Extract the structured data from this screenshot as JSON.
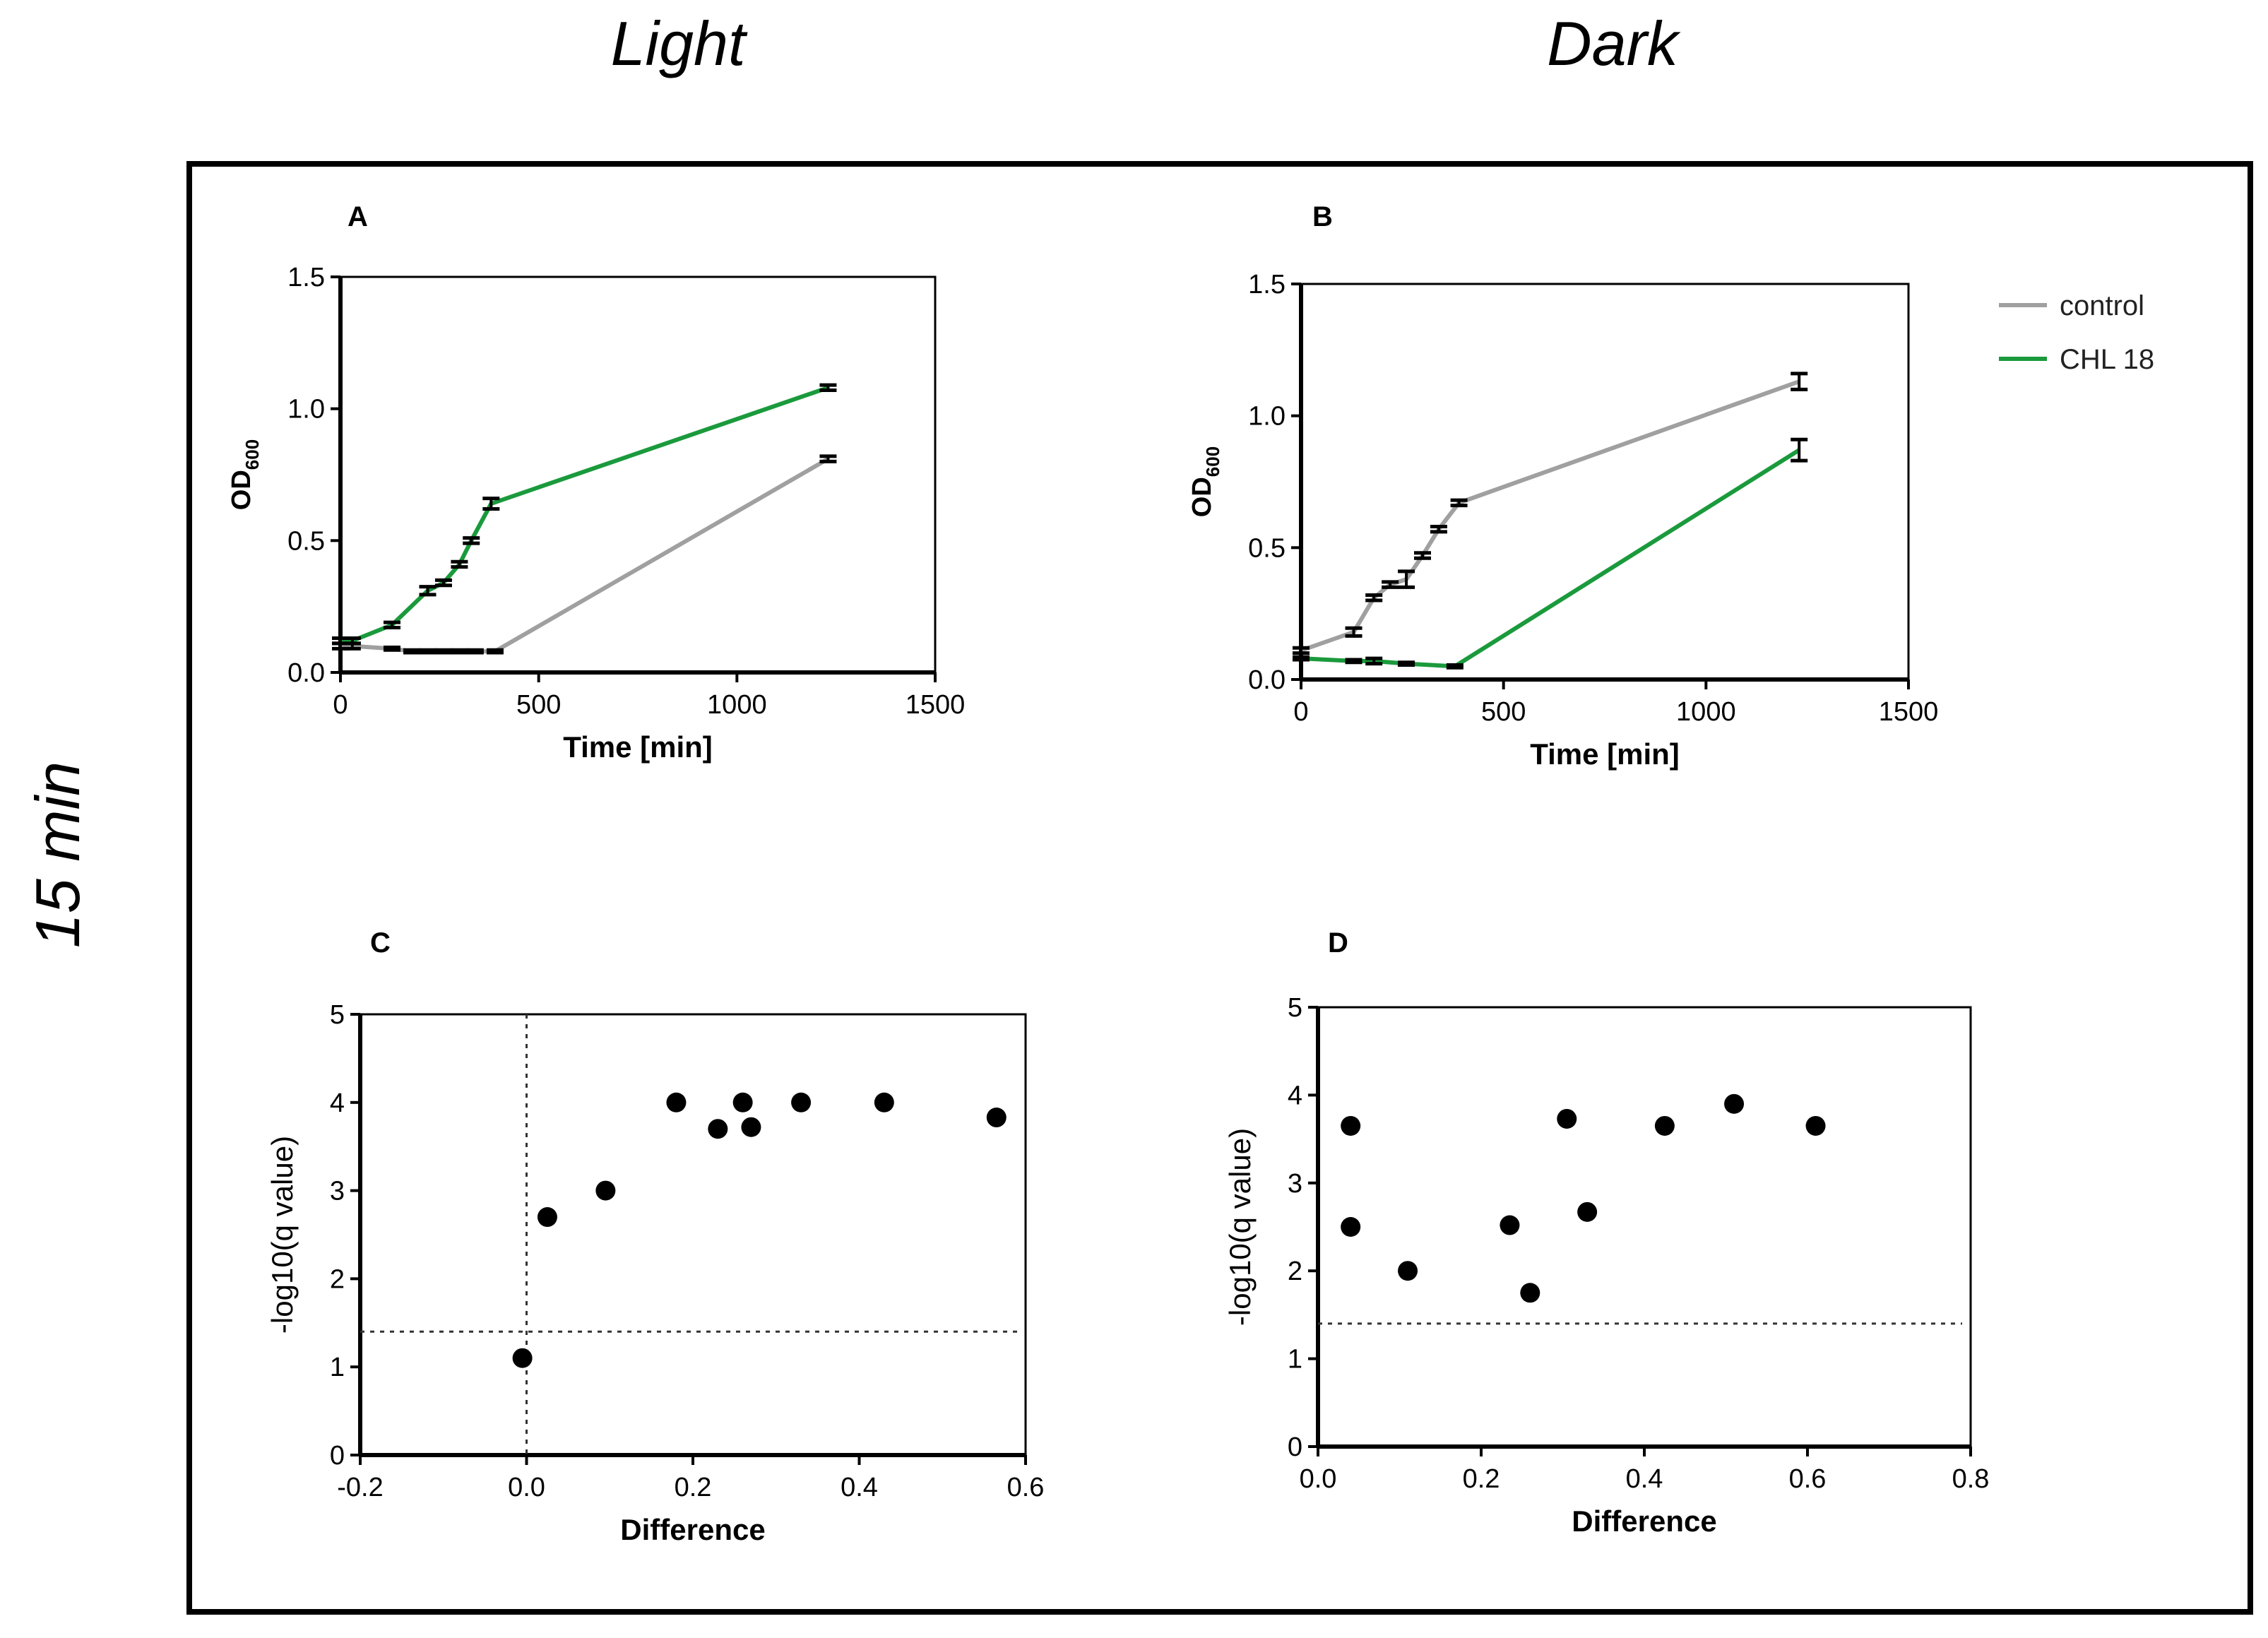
{
  "headers": {
    "col_light": "Light",
    "col_dark": "Dark",
    "row_label": "15 min"
  },
  "legend": {
    "items": [
      {
        "label": "control",
        "color": "#a0a0a0"
      },
      {
        "label": "CHL 18",
        "color": "#1a9a3c"
      }
    ]
  },
  "chart_data": [
    {
      "id": "A",
      "panel_label": "A",
      "type": "line",
      "xlabel": "Time [min]",
      "ylabel_main": "OD",
      "ylabel_sub": "600",
      "xlim": [
        0,
        1500
      ],
      "ylim": [
        0,
        1.5
      ],
      "xticks": [
        0,
        500,
        1000,
        1500
      ],
      "yticks": [
        0.0,
        0.5,
        1.0,
        1.5
      ],
      "x_tick_labels": [
        "0",
        "500",
        "1000",
        "1500"
      ],
      "y_tick_labels": [
        "0.0",
        "0.5",
        "1.0",
        "1.5"
      ],
      "series": [
        {
          "name": "control",
          "color": "#a0a0a0",
          "x": [
            0,
            30,
            130,
            180,
            220,
            260,
            300,
            340,
            390,
            1230
          ],
          "y": [
            0.1,
            0.1,
            0.09,
            0.08,
            0.08,
            0.08,
            0.08,
            0.08,
            0.08,
            0.81
          ],
          "err": [
            0.01,
            0.01,
            0.005,
            0.005,
            0.005,
            0.005,
            0.005,
            0.005,
            0.005,
            0.01
          ]
        },
        {
          "name": "CHL 18",
          "color": "#1a9a3c",
          "x": [
            0,
            30,
            130,
            220,
            260,
            300,
            330,
            380,
            1230
          ],
          "y": [
            0.12,
            0.12,
            0.18,
            0.31,
            0.34,
            0.41,
            0.5,
            0.64,
            1.08
          ],
          "err": [
            0.01,
            0.01,
            0.01,
            0.015,
            0.01,
            0.01,
            0.01,
            0.02,
            0.01
          ]
        }
      ]
    },
    {
      "id": "B",
      "panel_label": "B",
      "type": "line",
      "xlabel": "Time [min]",
      "ylabel_main": "OD",
      "ylabel_sub": "600",
      "xlim": [
        0,
        1500
      ],
      "ylim": [
        0,
        1.5
      ],
      "xticks": [
        0,
        500,
        1000,
        1500
      ],
      "yticks": [
        0.0,
        0.5,
        1.0,
        1.5
      ],
      "x_tick_labels": [
        "0",
        "500",
        "1000",
        "1500"
      ],
      "y_tick_labels": [
        "0.0",
        "0.5",
        "1.0",
        "1.5"
      ],
      "series": [
        {
          "name": "control",
          "color": "#a0a0a0",
          "x": [
            0,
            130,
            180,
            220,
            260,
            300,
            340,
            390,
            1230
          ],
          "y": [
            0.11,
            0.18,
            0.31,
            0.36,
            0.38,
            0.47,
            0.57,
            0.67,
            1.13
          ],
          "err": [
            0.01,
            0.015,
            0.01,
            0.01,
            0.03,
            0.01,
            0.01,
            0.01,
            0.03
          ]
        },
        {
          "name": "CHL 18",
          "color": "#1a9a3c",
          "x": [
            0,
            130,
            180,
            260,
            380,
            1230
          ],
          "y": [
            0.08,
            0.07,
            0.07,
            0.06,
            0.05,
            0.87
          ],
          "err": [
            0.005,
            0.005,
            0.01,
            0.005,
            0.005,
            0.04
          ]
        }
      ]
    },
    {
      "id": "C",
      "panel_label": "C",
      "type": "scatter",
      "xlabel": "Difference",
      "ylabel": "-log10(q value)",
      "xlim": [
        -0.2,
        0.6
      ],
      "ylim": [
        0,
        5
      ],
      "xticks": [
        -0.2,
        0.0,
        0.2,
        0.4,
        0.6
      ],
      "yticks": [
        0,
        1,
        2,
        3,
        4,
        5
      ],
      "x_tick_labels": [
        "-0.2",
        "0.0",
        "0.2",
        "0.4",
        "0.6"
      ],
      "y_tick_labels": [
        "0",
        "1",
        "2",
        "3",
        "4",
        "5"
      ],
      "threshold_y": 1.4,
      "vline_x": 0,
      "points": [
        {
          "x": -0.005,
          "y": 1.1
        },
        {
          "x": 0.025,
          "y": 2.7
        },
        {
          "x": 0.095,
          "y": 3.0
        },
        {
          "x": 0.18,
          "y": 4.0
        },
        {
          "x": 0.23,
          "y": 3.7
        },
        {
          "x": 0.26,
          "y": 4.0
        },
        {
          "x": 0.27,
          "y": 3.72
        },
        {
          "x": 0.33,
          "y": 4.0
        },
        {
          "x": 0.43,
          "y": 4.0
        },
        {
          "x": 0.565,
          "y": 3.83
        }
      ]
    },
    {
      "id": "D",
      "panel_label": "D",
      "type": "scatter",
      "xlabel": "Difference",
      "ylabel": "-log10(q value)",
      "xlim": [
        0,
        0.8
      ],
      "ylim": [
        0,
        5
      ],
      "xticks": [
        0.0,
        0.2,
        0.4,
        0.6,
        0.8
      ],
      "yticks": [
        0,
        1,
        2,
        3,
        4,
        5
      ],
      "x_tick_labels": [
        "0.0",
        "0.2",
        "0.4",
        "0.6",
        "0.8"
      ],
      "y_tick_labels": [
        "0",
        "1",
        "2",
        "3",
        "4",
        "5"
      ],
      "threshold_y": 1.4,
      "points": [
        {
          "x": 0.04,
          "y": 3.65
        },
        {
          "x": 0.04,
          "y": 2.5
        },
        {
          "x": 0.11,
          "y": 2.0
        },
        {
          "x": 0.235,
          "y": 2.52
        },
        {
          "x": 0.26,
          "y": 1.75
        },
        {
          "x": 0.305,
          "y": 3.73
        },
        {
          "x": 0.33,
          "y": 2.67
        },
        {
          "x": 0.425,
          "y": 3.65
        },
        {
          "x": 0.51,
          "y": 3.9
        },
        {
          "x": 0.61,
          "y": 3.65
        }
      ]
    }
  ]
}
